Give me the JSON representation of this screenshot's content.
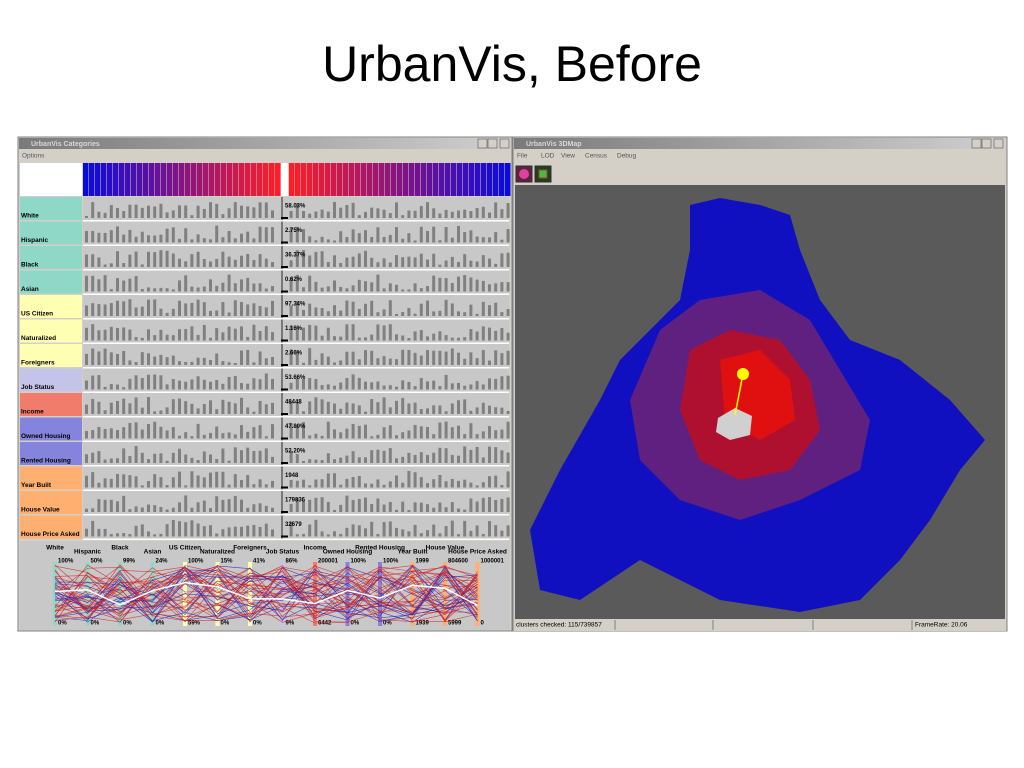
{
  "title": "UrbanVis, Before",
  "left_window": {
    "title": "UrbanVis Categories",
    "menu": [
      "Options"
    ],
    "rows": [
      {
        "label": "White",
        "value": "58.03%",
        "color": "#8fd8c8"
      },
      {
        "label": "Hispanic",
        "value": "2.75%",
        "color": "#8fd8c8"
      },
      {
        "label": "Black",
        "value": "36.37%",
        "color": "#8fd8c8"
      },
      {
        "label": "Asian",
        "value": "0.62%",
        "color": "#8fd8c8"
      },
      {
        "label": "US Citizen",
        "value": "97.34%",
        "color": "#ffffb4"
      },
      {
        "label": "Naturalized",
        "value": "1.16%",
        "color": "#ffffb4"
      },
      {
        "label": "Foreigners",
        "value": "2.66%",
        "color": "#ffffb4"
      },
      {
        "label": "Job Status",
        "value": "53.66%",
        "color": "#c4c4e8"
      },
      {
        "label": "Income",
        "value": "48448",
        "color": "#f27c6c"
      },
      {
        "label": "Owned Housing",
        "value": "47.80%",
        "color": "#8484dc"
      },
      {
        "label": "Rented Housing",
        "value": "52.20%",
        "color": "#8484dc"
      },
      {
        "label": "Year Built",
        "value": "1948",
        "color": "#ffb070"
      },
      {
        "label": "House Value",
        "value": "179836",
        "color": "#ffb070"
      },
      {
        "label": "House Price Asked",
        "value": "32679",
        "color": "#ffb070"
      }
    ],
    "axes": [
      {
        "label": "White",
        "max": "100%",
        "min": "0%"
      },
      {
        "label": "Hispanic",
        "max": "50%",
        "min": "0%"
      },
      {
        "label": "Black",
        "max": "99%",
        "min": "0%"
      },
      {
        "label": "Asian",
        "max": "24%",
        "min": "0%"
      },
      {
        "label": "US Citizen",
        "max": "100%",
        "min": "59%"
      },
      {
        "label": "Naturalized",
        "max": "15%",
        "min": "0%"
      },
      {
        "label": "Foreigners",
        "max": "41%",
        "min": "0%"
      },
      {
        "label": "Job Status",
        "max": "86%",
        "min": "9%"
      },
      {
        "label": "Income",
        "max": "200001",
        "min": "6442"
      },
      {
        "label": "Owned Housing",
        "max": "100%",
        "min": "0%"
      },
      {
        "label": "Rented Housing",
        "max": "100%",
        "min": "0%"
      },
      {
        "label": "Year Built",
        "max": "1999",
        "min": "1939"
      },
      {
        "label": "House Value",
        "max": "804600",
        "min": "5999"
      },
      {
        "label": "House Price Asked",
        "max": "1000001",
        "min": "0"
      }
    ]
  },
  "right_window": {
    "title": "UrbanVis 3DMap",
    "menu": [
      "File",
      "LOD",
      "View",
      "Census",
      "Debug"
    ],
    "status": "clusters checked: 115/739857",
    "frame_rate": "FrameRate: 20.06"
  }
}
